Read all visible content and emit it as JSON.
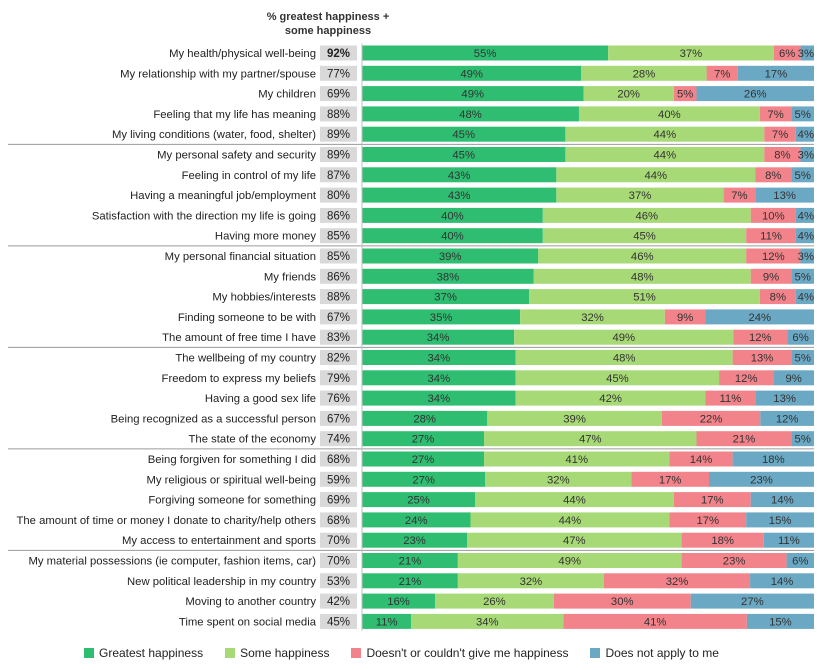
{
  "header": {
    "line1": "% greatest happiness +",
    "line2": "some happiness"
  },
  "colors": {
    "greatest": "#2fbd72",
    "some": "#a8d977",
    "doesnt": "#f2838a",
    "na": "#6aa8c4",
    "total_bg": "#d9d9d9"
  },
  "chart_data": {
    "type": "bar",
    "orientation": "horizontal-stacked-100",
    "total_header": "% greatest happiness + some happiness",
    "series_names": [
      "Greatest happiness",
      "Some happiness",
      "Doesn't or couldn't give me happiness",
      "Does not apply to me"
    ],
    "rows": [
      {
        "label": "My health/physical well-being",
        "total": "92%",
        "values": [
          55,
          37,
          6,
          3
        ]
      },
      {
        "label": "My relationship with my partner/spouse",
        "total": "77%",
        "values": [
          49,
          28,
          7,
          17
        ]
      },
      {
        "label": "My children",
        "total": "69%",
        "values": [
          49,
          20,
          5,
          26
        ]
      },
      {
        "label": "Feeling that my life has meaning",
        "total": "88%",
        "values": [
          48,
          40,
          7,
          5
        ]
      },
      {
        "label": "My living conditions (water, food, shelter)",
        "total": "89%",
        "values": [
          45,
          44,
          7,
          4
        ]
      },
      {
        "label": "My personal safety and security",
        "total": "89%",
        "values": [
          45,
          44,
          8,
          3
        ]
      },
      {
        "label": "Feeling in control of my life",
        "total": "87%",
        "values": [
          43,
          44,
          8,
          5
        ]
      },
      {
        "label": "Having a meaningful job/employment",
        "total": "80%",
        "values": [
          43,
          37,
          7,
          13
        ]
      },
      {
        "label": "Satisfaction with the direction my life is going",
        "total": "86%",
        "values": [
          40,
          46,
          10,
          4
        ]
      },
      {
        "label": "Having more money",
        "total": "85%",
        "values": [
          40,
          45,
          11,
          4
        ]
      },
      {
        "label": "My personal financial situation",
        "total": "85%",
        "values": [
          39,
          46,
          12,
          3
        ]
      },
      {
        "label": "My friends",
        "total": "86%",
        "values": [
          38,
          48,
          9,
          5
        ]
      },
      {
        "label": "My hobbies/interests",
        "total": "88%",
        "values": [
          37,
          51,
          8,
          4
        ]
      },
      {
        "label": "Finding someone to be with",
        "total": "67%",
        "values": [
          35,
          32,
          9,
          24
        ]
      },
      {
        "label": "The amount of free time I have",
        "total": "83%",
        "values": [
          34,
          49,
          12,
          6
        ]
      },
      {
        "label": "The wellbeing of my country",
        "total": "82%",
        "values": [
          34,
          48,
          13,
          5
        ]
      },
      {
        "label": "Freedom to express my beliefs",
        "total": "79%",
        "values": [
          34,
          45,
          12,
          9
        ]
      },
      {
        "label": "Having a good sex life",
        "total": "76%",
        "values": [
          34,
          42,
          11,
          13
        ]
      },
      {
        "label": "Being recognized as a successful person",
        "total": "67%",
        "values": [
          28,
          39,
          22,
          12
        ]
      },
      {
        "label": "The state of the economy",
        "total": "74%",
        "values": [
          27,
          47,
          21,
          5
        ]
      },
      {
        "label": "Being forgiven for something I did",
        "total": "68%",
        "values": [
          27,
          41,
          14,
          18
        ]
      },
      {
        "label": "My religious or spiritual well-being",
        "total": "59%",
        "values": [
          27,
          32,
          17,
          23
        ]
      },
      {
        "label": "Forgiving someone for something",
        "total": "69%",
        "values": [
          25,
          44,
          17,
          14
        ]
      },
      {
        "label": "The amount of time or money I donate to charity/help others",
        "total": "68%",
        "values": [
          24,
          44,
          17,
          15
        ]
      },
      {
        "label": "My access to entertainment and sports",
        "total": "70%",
        "values": [
          23,
          47,
          18,
          11
        ]
      },
      {
        "label": "My material possessions (ie computer, fashion items, car)",
        "total": "70%",
        "values": [
          21,
          49,
          23,
          6
        ]
      },
      {
        "label": "New political leadership in my country",
        "total": "53%",
        "values": [
          21,
          32,
          32,
          14
        ]
      },
      {
        "label": "Moving to another country",
        "total": "42%",
        "values": [
          16,
          26,
          30,
          27
        ]
      },
      {
        "label": "Time spent on social media",
        "total": "45%",
        "values": [
          11,
          34,
          41,
          15
        ]
      }
    ],
    "group_breaks_after_row": [
      4,
      9,
      14,
      19,
      24
    ]
  },
  "legend": [
    {
      "label": "Greatest happiness"
    },
    {
      "label": "Some happiness"
    },
    {
      "label": "Doesn't or couldn't give me happiness"
    },
    {
      "label": "Does not apply to me"
    }
  ]
}
